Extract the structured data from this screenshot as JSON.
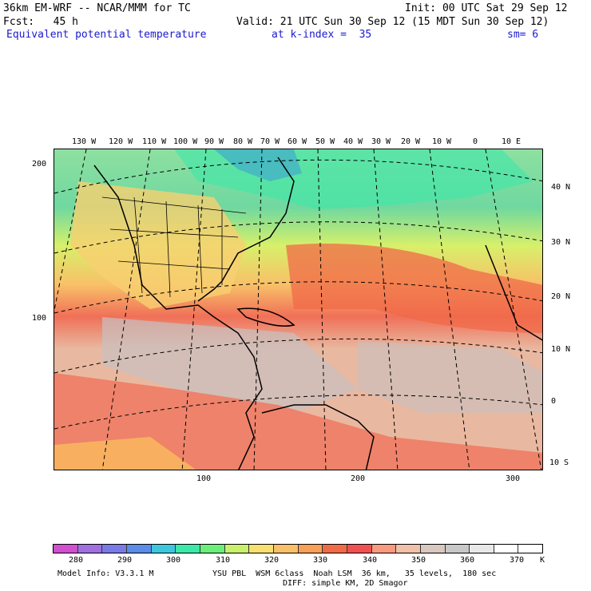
{
  "header": {
    "model_title": "36km EM-WRF -- NCAR/MMM for TC",
    "init": "Init: 00 UTC Sat 29 Sep 12",
    "fcst": "Fcst:   45 h",
    "valid": "Valid: 21 UTC Sun 30 Sep 12 (15 MDT Sun 30 Sep 12)",
    "field": "Equivalent potential temperature",
    "level": "at k-index =  35",
    "smoothing": "sm= 6"
  },
  "map": {
    "top_lon_labels": [
      "130 W",
      "120 W",
      "110 W",
      "100 W",
      "90 W",
      "80 W",
      "70 W",
      "60 W",
      "50 W",
      "40 W",
      "30 W",
      "20 W",
      "10 W",
      "0",
      "10 E"
    ],
    "right_lat_labels": [
      "40 N",
      "30 N",
      "20 N",
      "10 N",
      "0",
      "10 S"
    ],
    "left_grid_labels": [
      "200",
      "100"
    ],
    "bottom_grid_labels": [
      "100",
      "200",
      "300"
    ],
    "colors": {
      "ocean_north": "#6fd8a0",
      "land_mid": "#f2c86a",
      "tropics": "#e9b8a0",
      "warm": "#f07058",
      "cold": "#5a7ae0",
      "grey": "#c8c0c0"
    }
  },
  "colorbar": {
    "colors": [
      "#d04ed0",
      "#a070e0",
      "#7a7ae6",
      "#5a8ce8",
      "#3cc8dc",
      "#3ce8a8",
      "#6af07a",
      "#c8f06a",
      "#f8e070",
      "#f8c068",
      "#f8a058",
      "#f06a48",
      "#f05050",
      "#f89a80",
      "#f0c0a8",
      "#d8c8c0",
      "#c8c8c8",
      "#e8e8e8",
      "#ffffff",
      "#ffffff"
    ],
    "labels": [
      "280",
      "290",
      "300",
      "310",
      "320",
      "330",
      "340",
      "350",
      "360",
      "370"
    ],
    "unit": "K"
  },
  "footer": {
    "model_info": "Model Info: V3.3.1 M",
    "physics": "YSU PBL  WSM 6class  Noah LSM  36 km,   35 levels,  180 sec",
    "diff": "DIFF: simple KM, 2D Smagor"
  }
}
